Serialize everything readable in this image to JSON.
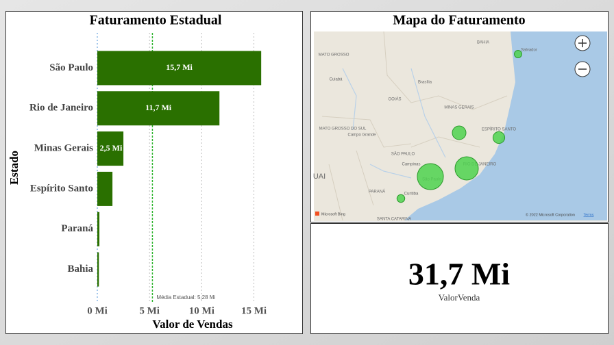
{
  "chart_data": [
    {
      "type": "bar",
      "title": "Faturamento Estadual",
      "x_label": "Valor de Vendas",
      "y_label": "Estado",
      "categories": [
        "São Paulo",
        "Rio de Janeiro",
        "Minas Gerais",
        "Espírito Santo",
        "Paraná",
        "Bahia"
      ],
      "values": [
        15.7,
        11.7,
        2.5,
        1.45,
        0.2,
        0.15
      ],
      "value_labels": [
        "15,7 Mi",
        "11,7 Mi",
        "2,5 Mi",
        null,
        null,
        null
      ],
      "color": "#2a7000",
      "xlim": [
        0,
        19.3
      ],
      "xticks": [
        {
          "value": 0,
          "label": "0 Mi"
        },
        {
          "value": 5,
          "label": "5 Mi"
        },
        {
          "value": 10,
          "label": "10 Mi"
        },
        {
          "value": 15,
          "label": "15 Mi"
        }
      ],
      "grid": true,
      "reference_line": {
        "value": 5.28,
        "label": "Média Estadual: 5,28 Mi",
        "color": "#2fb52f"
      }
    },
    {
      "type": "card",
      "values": [
        31.7
      ],
      "value_labels": [
        "31,7 Mi"
      ],
      "caption": "ValorVenda"
    }
  ],
  "map": {
    "title": "Mapa do Faturamento",
    "bubble_color": "#4fd24f",
    "places": [
      "BAHIA",
      "MATO GROSSO",
      "Cuiabá",
      "Brasília",
      "GOIÁS",
      "MINAS GERAIS",
      "MATO GROSSO DO SUL",
      "Campo Grande",
      "ESPÍRITO SANTO",
      "SÃO PAULO",
      "Campinas",
      "São Paulo",
      "RIO DE JANEIRO",
      "PARANÁ",
      "Curitiba",
      "Salvador",
      "UAI",
      "SANTA CATARINA"
    ],
    "brand": "Microsoft Bing",
    "attribution": "© 2022 Microsoft Corporation",
    "terms": "Terms"
  }
}
